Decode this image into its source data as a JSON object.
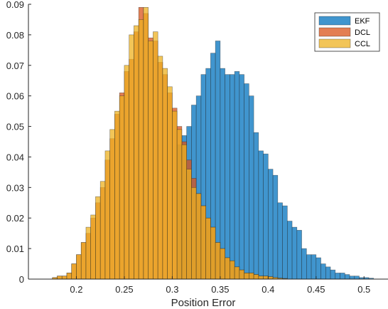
{
  "chart_data": {
    "type": "bar",
    "chart_subtype": "overlapping-histogram",
    "title": "",
    "xlabel": "Position Error",
    "ylabel": "",
    "xlim": [
      0.15,
      0.525
    ],
    "ylim": [
      0,
      0.09
    ],
    "x_ticks": [
      "0.2",
      "0.25",
      "0.3",
      "0.35",
      "0.4",
      "0.45",
      "0.5"
    ],
    "y_ticks": [
      "0",
      "0.01",
      "0.02",
      "0.03",
      "0.04",
      "0.05",
      "0.06",
      "0.07",
      "0.08",
      "0.09"
    ],
    "grid": false,
    "legend_position": "top-right",
    "colors": {
      "EKF": "#0072BD",
      "DCL": "#D95319",
      "CCL": "#EDB120"
    },
    "series": [
      {
        "name": "EKF",
        "color": "#0072BD",
        "opacity": 0.75,
        "bin_edges": [
          0.305,
          0.31,
          0.315,
          0.32,
          0.325,
          0.33,
          0.335,
          0.34,
          0.345,
          0.35,
          0.355,
          0.36,
          0.365,
          0.37,
          0.375,
          0.38,
          0.385,
          0.39,
          0.395,
          0.4,
          0.405,
          0.41,
          0.415,
          0.42,
          0.425,
          0.43,
          0.435,
          0.44,
          0.445,
          0.45,
          0.455,
          0.46,
          0.465,
          0.47,
          0.475,
          0.48,
          0.485,
          0.49,
          0.495,
          0.5,
          0.505,
          0.51
        ],
        "values": [
          0.044,
          0.047,
          0.05,
          0.057,
          0.06,
          0.067,
          0.069,
          0.074,
          0.078,
          0.069,
          0.067,
          0.067,
          0.068,
          0.067,
          0.064,
          0.06,
          0.048,
          0.042,
          0.041,
          0.036,
          0.034,
          0.025,
          0.024,
          0.019,
          0.017,
          0.016,
          0.01,
          0.008,
          0.008,
          0.007,
          0.005,
          0.004,
          0.003,
          0.002,
          0.002,
          0.0015,
          0.001,
          0.001,
          0.0005,
          0.0005,
          0.0003
        ]
      },
      {
        "name": "DCL",
        "color": "#D95319",
        "opacity": 0.75,
        "bin_edges": [
          0.175,
          0.18,
          0.185,
          0.19,
          0.195,
          0.2,
          0.205,
          0.21,
          0.215,
          0.22,
          0.225,
          0.23,
          0.235,
          0.24,
          0.245,
          0.25,
          0.255,
          0.26,
          0.265,
          0.27,
          0.275,
          0.28,
          0.285,
          0.29,
          0.295,
          0.3,
          0.305,
          0.31,
          0.315,
          0.32,
          0.325,
          0.33,
          0.335,
          0.34,
          0.345,
          0.35,
          0.355,
          0.36,
          0.365,
          0.37,
          0.375,
          0.38,
          0.385,
          0.39,
          0.395,
          0.4,
          0.405,
          0.41,
          0.415,
          0.42
        ],
        "values": [
          0.0005,
          0.001,
          0.001,
          0.002,
          0.005,
          0.008,
          0.012,
          0.015,
          0.02,
          0.025,
          0.03,
          0.039,
          0.046,
          0.054,
          0.061,
          0.068,
          0.072,
          0.081,
          0.089,
          0.087,
          0.079,
          0.078,
          0.071,
          0.067,
          0.061,
          0.056,
          0.05,
          0.045,
          0.039,
          0.033,
          0.028,
          0.024,
          0.02,
          0.017,
          0.012,
          0.01,
          0.007,
          0.006,
          0.004,
          0.003,
          0.002,
          0.002,
          0.0015,
          0.001,
          0.001,
          0.0008,
          0.0005,
          0.0003,
          0.0002
        ]
      },
      {
        "name": "CCL",
        "color": "#EDB120",
        "opacity": 0.75,
        "bin_edges": [
          0.175,
          0.18,
          0.185,
          0.19,
          0.195,
          0.2,
          0.205,
          0.21,
          0.215,
          0.22,
          0.225,
          0.23,
          0.235,
          0.24,
          0.245,
          0.25,
          0.255,
          0.26,
          0.265,
          0.27,
          0.275,
          0.28,
          0.285,
          0.29,
          0.295,
          0.3,
          0.305,
          0.31,
          0.315,
          0.32,
          0.325,
          0.33,
          0.335,
          0.34,
          0.345,
          0.35,
          0.355,
          0.36,
          0.365,
          0.37,
          0.375,
          0.38,
          0.385,
          0.39,
          0.395,
          0.4,
          0.405,
          0.41,
          0.415,
          0.42
        ],
        "values": [
          0.0005,
          0.001,
          0.001,
          0.002,
          0.005,
          0.008,
          0.012,
          0.017,
          0.021,
          0.027,
          0.032,
          0.042,
          0.049,
          0.055,
          0.06,
          0.07,
          0.08,
          0.083,
          0.085,
          0.089,
          0.078,
          0.081,
          0.073,
          0.069,
          0.063,
          0.055,
          0.049,
          0.044,
          0.036,
          0.03,
          0.028,
          0.024,
          0.02,
          0.017,
          0.012,
          0.01,
          0.007,
          0.006,
          0.004,
          0.003,
          0.002,
          0.002,
          0.0015,
          0.001,
          0.001,
          0.0008,
          0.0005,
          0.0003,
          0.0002
        ]
      }
    ]
  }
}
